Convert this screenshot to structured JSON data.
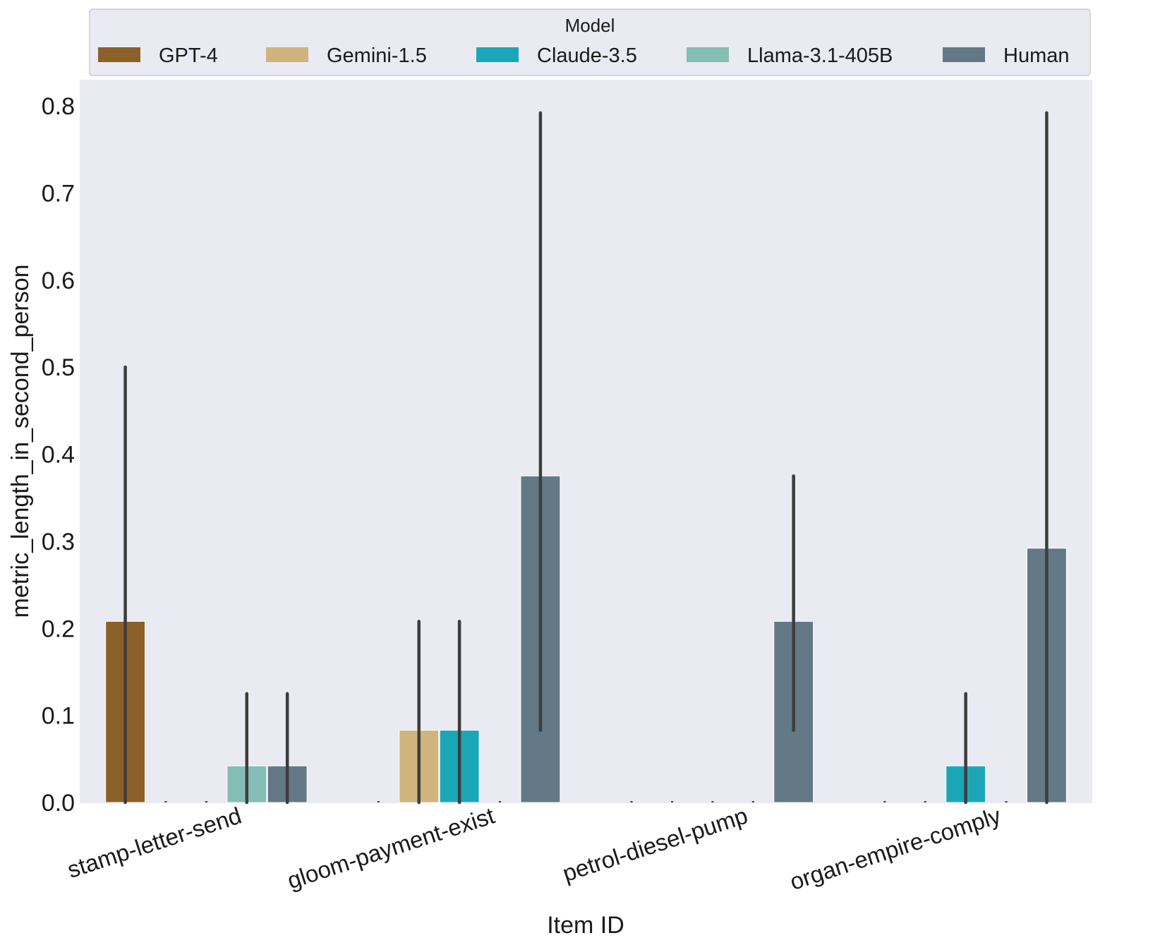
{
  "chart_data": {
    "type": "bar",
    "title": "",
    "xlabel": "Item ID",
    "ylabel": "metric_length_in_second_person",
    "ylim": [
      0,
      0.84
    ],
    "yticks": [
      0.0,
      0.1,
      0.2,
      0.3,
      0.4,
      0.5,
      0.6,
      0.7,
      0.8
    ],
    "ytick_labels": [
      "0.0",
      "0.1",
      "0.2",
      "0.3",
      "0.4",
      "0.5",
      "0.6",
      "0.7",
      "0.8"
    ],
    "grid": false,
    "categories": [
      "stamp-letter-send",
      "gloom-payment-exist",
      "petrol-diesel-pump",
      "organ-empire-comply"
    ],
    "legend": {
      "title": "Model",
      "placement": "top"
    },
    "series": [
      {
        "name": "GPT-4",
        "color": "#8c6029",
        "values": [
          0.208,
          0.0,
          0.0,
          0.0
        ],
        "ci": [
          [
            0.0,
            0.5
          ],
          null,
          null,
          null
        ]
      },
      {
        "name": "Gemini-1.5",
        "color": "#cfb47d",
        "values": [
          0.0,
          0.083,
          0.0,
          0.0
        ],
        "ci": [
          null,
          [
            0.0,
            0.208
          ],
          null,
          null
        ]
      },
      {
        "name": "Claude-3.5",
        "color": "#1ca7b8",
        "values": [
          0.0,
          0.083,
          0.0,
          0.042
        ],
        "ci": [
          null,
          [
            0.0,
            0.208
          ],
          null,
          [
            0.0,
            0.125
          ]
        ]
      },
      {
        "name": "Llama-3.1-405B",
        "color": "#84bdb3",
        "values": [
          0.042,
          0.0,
          0.0,
          0.0
        ],
        "ci": [
          [
            0.0,
            0.125
          ],
          null,
          null,
          null
        ]
      },
      {
        "name": "Human",
        "color": "#637985",
        "values": [
          0.042,
          0.375,
          0.208,
          0.292
        ],
        "ci": [
          [
            0.0,
            0.125
          ],
          [
            0.083,
            0.792
          ],
          [
            0.083,
            0.375
          ],
          [
            0.0,
            0.792
          ]
        ]
      }
    ]
  }
}
